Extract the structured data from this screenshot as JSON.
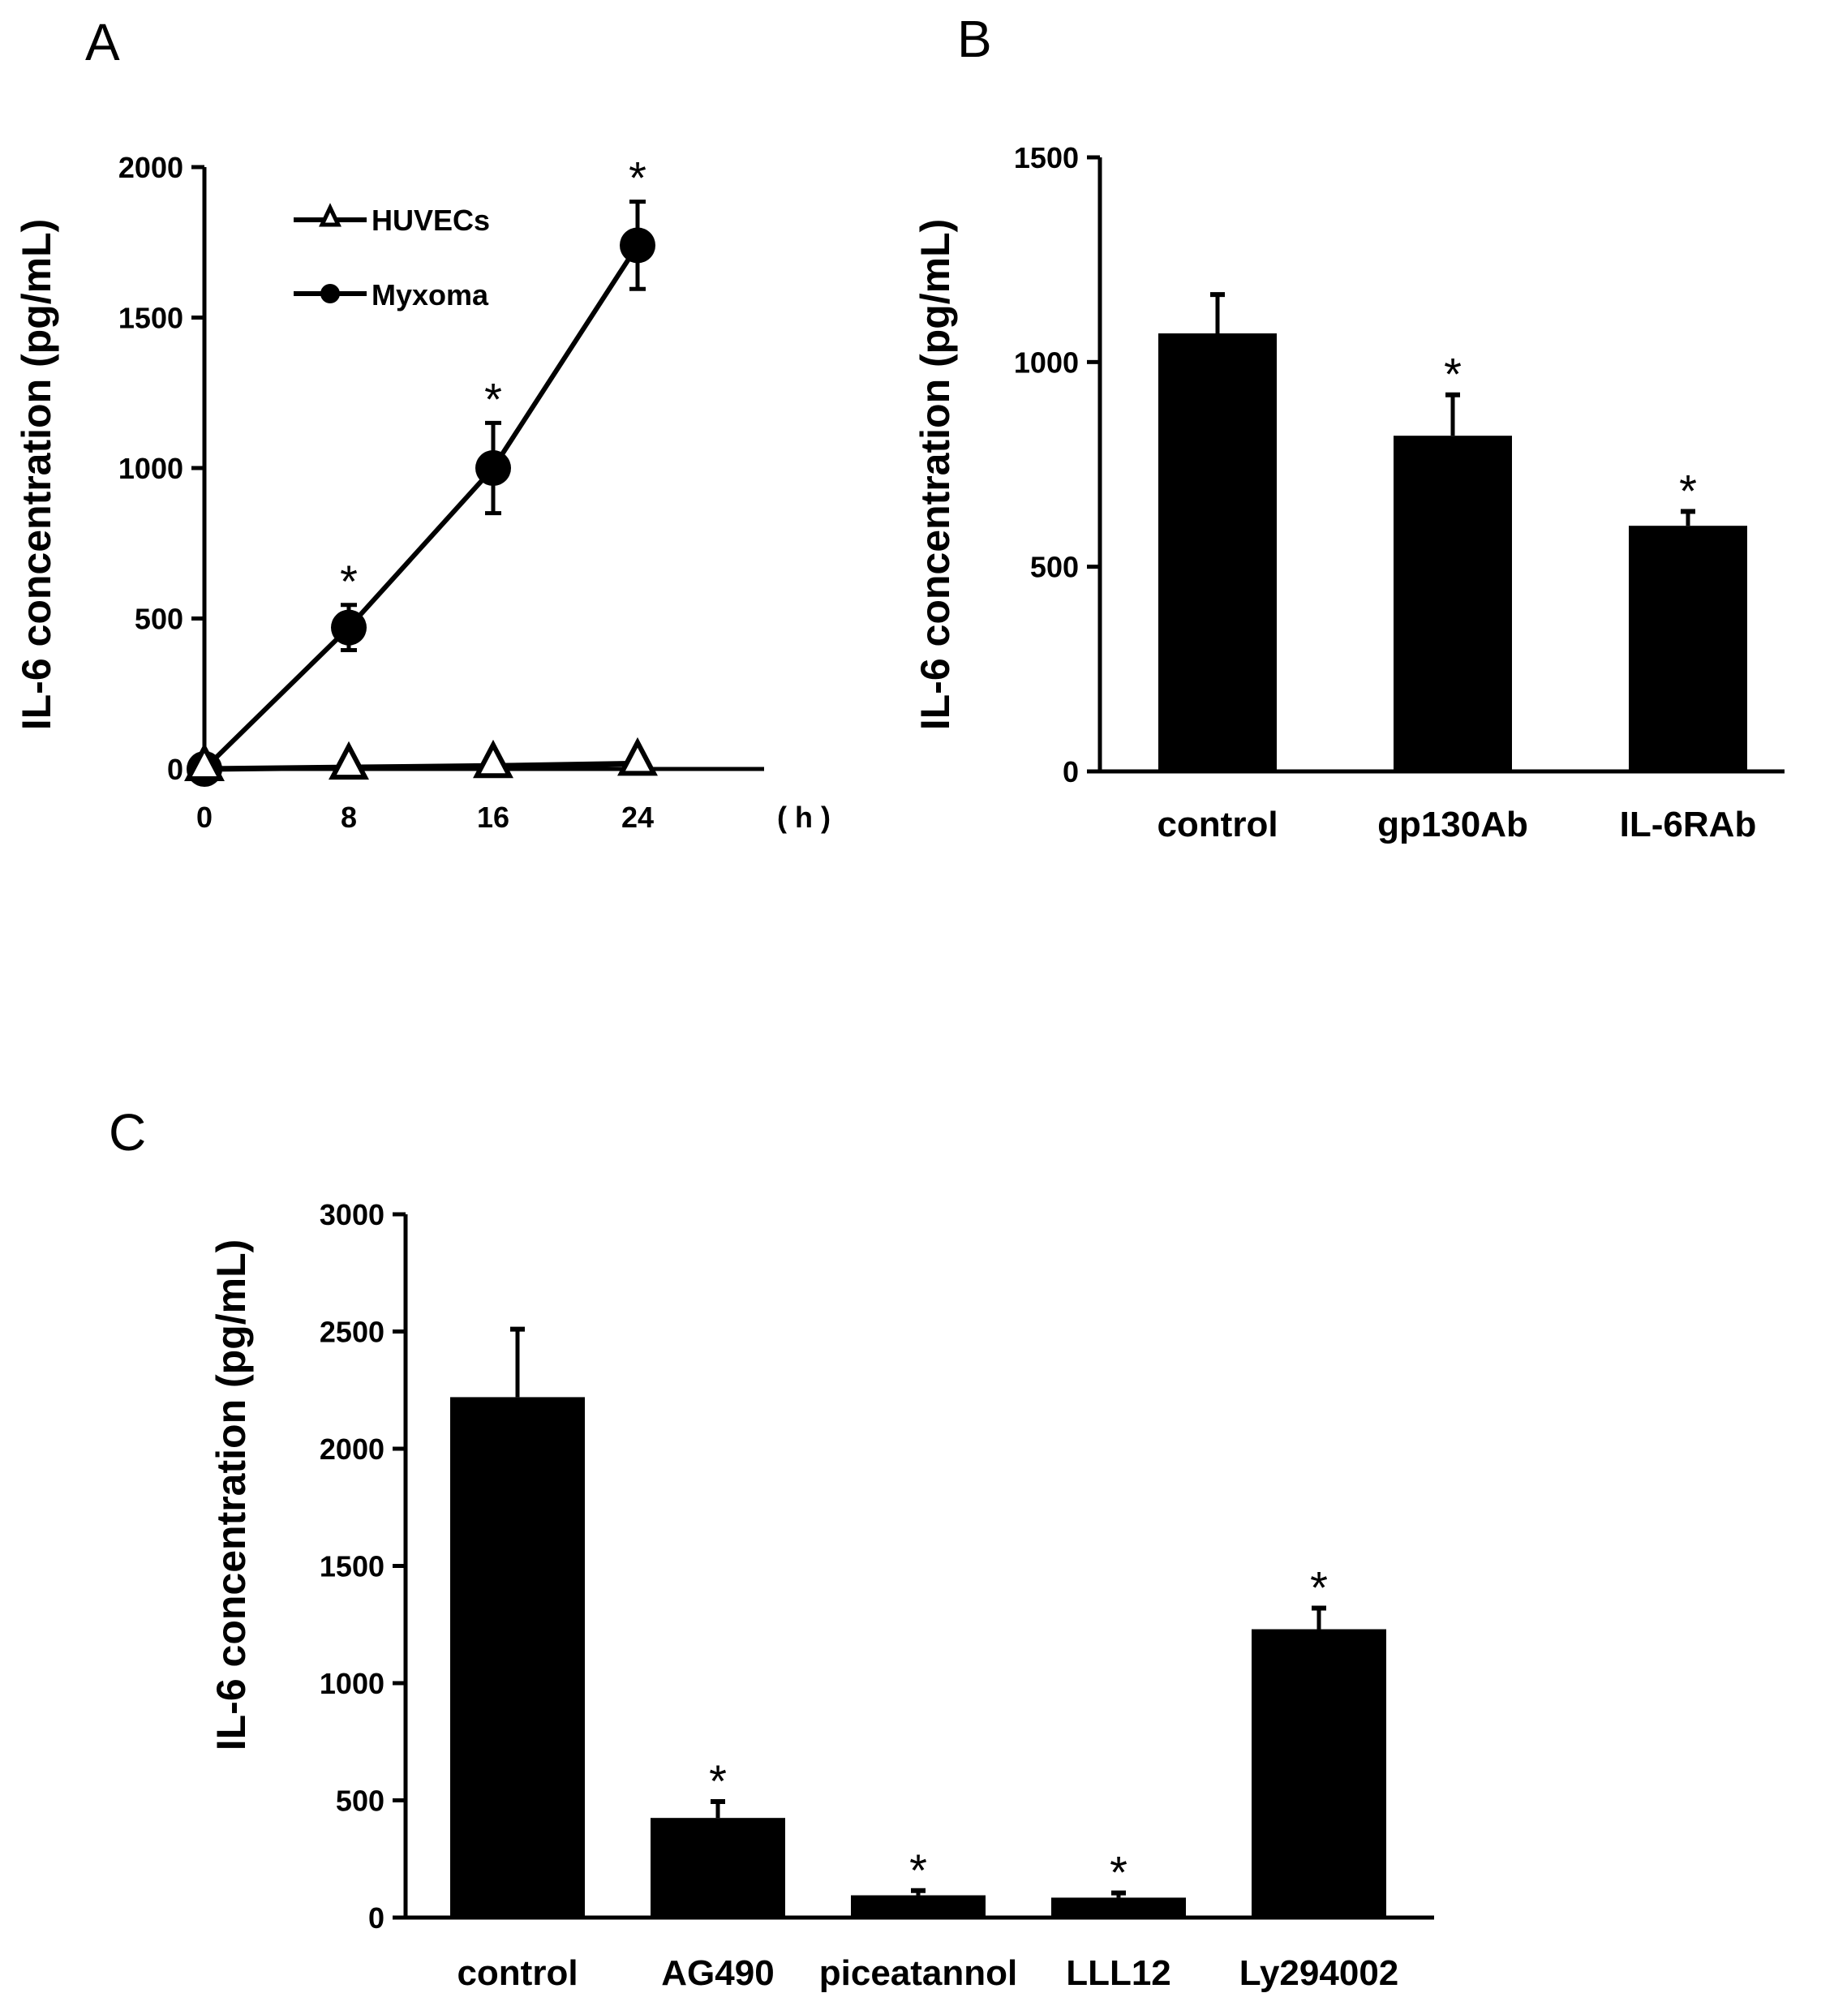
{
  "chart_data": [
    {
      "panel": "A",
      "type": "line",
      "ylabel": "IL-6 concentration (pg/mL)",
      "xlabel": "",
      "x_unit": "( h )",
      "x": [
        0,
        8,
        16,
        24
      ],
      "x_ticks": [
        "0",
        "8",
        "16",
        "24"
      ],
      "ylim": [
        0,
        2000
      ],
      "y_ticks": [
        "0",
        "500",
        "1000",
        "1500",
        "2000"
      ],
      "series": [
        {
          "name": "HUVECs",
          "marker": "open-triangle",
          "values": [
            0,
            5,
            10,
            18
          ],
          "errors": [
            0,
            0,
            0,
            0
          ]
        },
        {
          "name": "Myxoma",
          "marker": "filled-circle",
          "values": [
            0,
            470,
            1000,
            1740
          ],
          "errors": [
            0,
            75,
            150,
            145
          ],
          "significant": [
            false,
            true,
            true,
            true
          ]
        }
      ],
      "annotation": "*",
      "legend_position": "top-left"
    },
    {
      "panel": "B",
      "type": "bar",
      "ylabel": "IL-6 concentration (pg/mL)",
      "categories": [
        "control",
        "gp130Ab",
        "IL-6RAb"
      ],
      "values": [
        1070,
        820,
        600
      ],
      "errors": [
        95,
        100,
        35
      ],
      "significant": [
        false,
        true,
        true
      ],
      "ylim": [
        0,
        1500
      ],
      "y_ticks": [
        "0",
        "500",
        "1000",
        "1500"
      ],
      "annotation": "*"
    },
    {
      "panel": "C",
      "type": "bar",
      "ylabel": "IL-6 concentration (pg/mL)",
      "categories": [
        "control",
        "AG490",
        "piceatannol",
        "LLL12",
        "Ly294002"
      ],
      "values": [
        2220,
        425,
        95,
        85,
        1230
      ],
      "errors": [
        290,
        70,
        20,
        20,
        90
      ],
      "significant": [
        false,
        true,
        true,
        true,
        true
      ],
      "ylim": [
        0,
        3000
      ],
      "y_ticks": [
        "0",
        "500",
        "1000",
        "1500",
        "2000",
        "2500",
        "3000"
      ],
      "annotation": "*"
    }
  ]
}
